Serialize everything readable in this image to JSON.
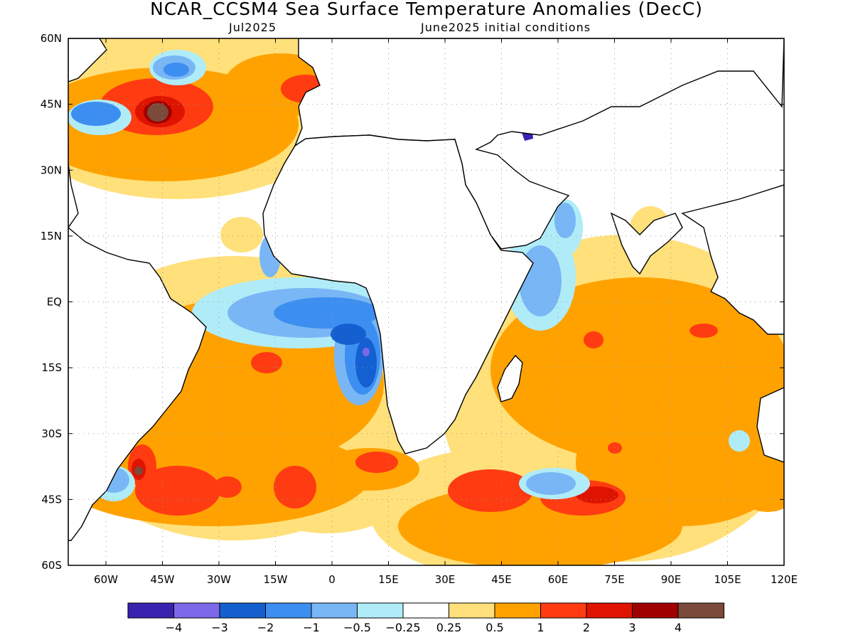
{
  "title": "NCAR_CCSM4 Sea Surface Temperature Anomalies (DecC)",
  "subtitle_left": "Jul2025",
  "subtitle_right": "June2025 initial conditions",
  "map": {
    "lon_range": [
      -70,
      120
    ],
    "lat_range": [
      -60,
      60
    ],
    "lon_ticks": [
      {
        "value": -60,
        "label": "60W"
      },
      {
        "value": -45,
        "label": "45W"
      },
      {
        "value": -30,
        "label": "30W"
      },
      {
        "value": -15,
        "label": "15W"
      },
      {
        "value": 0,
        "label": "0"
      },
      {
        "value": 15,
        "label": "15E"
      },
      {
        "value": 30,
        "label": "30E"
      },
      {
        "value": 45,
        "label": "45E"
      },
      {
        "value": 60,
        "label": "60E"
      },
      {
        "value": 75,
        "label": "75E"
      },
      {
        "value": 90,
        "label": "90E"
      },
      {
        "value": 105,
        "label": "105E"
      },
      {
        "value": 120,
        "label": "120E"
      }
    ],
    "lat_ticks": [
      {
        "value": 60,
        "label": "60N"
      },
      {
        "value": 45,
        "label": "45N"
      },
      {
        "value": 30,
        "label": "30N"
      },
      {
        "value": 15,
        "label": "15N"
      },
      {
        "value": 0,
        "label": "EQ"
      },
      {
        "value": -15,
        "label": "15S"
      },
      {
        "value": -30,
        "label": "30S"
      },
      {
        "value": -45,
        "label": "45S"
      },
      {
        "value": -60,
        "label": "60S"
      }
    ],
    "grid": "dotted"
  },
  "colorbar": {
    "colors": [
      "#3a22b0",
      "#7d68ea",
      "#1460d0",
      "#3c8ff0",
      "#79b6f5",
      "#b0ecf8",
      "#ffffff",
      "#ffe07a",
      "#ffa200",
      "#ff3b12",
      "#de1400",
      "#a00000",
      "#7a4a3a"
    ],
    "labels": [
      "-4",
      "-3",
      "-2",
      "-1",
      "-0.5",
      "-0.25",
      "0.25",
      "0.5",
      "1",
      "2",
      "3",
      "4"
    ]
  }
}
